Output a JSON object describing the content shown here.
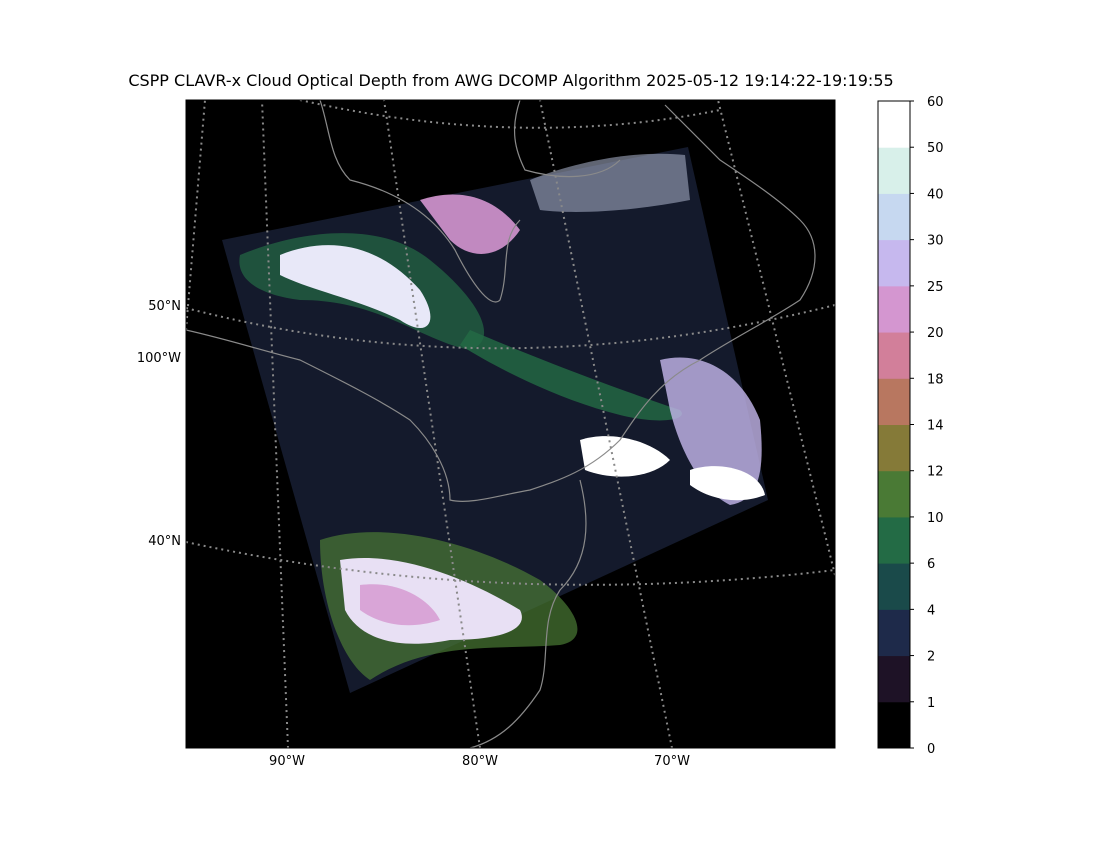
{
  "title": "CSPP CLAVR-x Cloud Optical Depth from AWG DCOMP Algorithm 2025-05-12 19:14:22-19:19:55",
  "map": {
    "lat_labels": [
      "50°N",
      "40°N"
    ],
    "lon_labels": [
      "100°W",
      "90°W",
      "80°W",
      "70°W"
    ]
  },
  "colorbar": {
    "ticks": [
      0,
      1,
      2,
      4,
      6,
      10,
      12,
      14,
      18,
      20,
      25,
      30,
      40,
      50,
      60
    ],
    "colors": [
      "#000000",
      "#1e1226",
      "#1e2a4a",
      "#1a4a4a",
      "#236b45",
      "#4a7a35",
      "#857a38",
      "#b87760",
      "#d27f9a",
      "#d496d0",
      "#c6b8ee",
      "#c6d8f0",
      "#d8f0ea",
      "#ffffff"
    ]
  }
}
